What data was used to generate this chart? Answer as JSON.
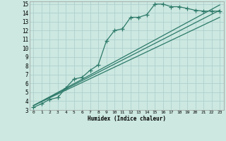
{
  "xlabel": "Humidex (Indice chaleur)",
  "bg_color": "#cce8e0",
  "grid_color": "#aacccc",
  "line_color": "#2d7a6a",
  "xlim": [
    -0.5,
    23.5
  ],
  "ylim": [
    3,
    15.3
  ],
  "xticks": [
    0,
    1,
    2,
    3,
    4,
    5,
    6,
    7,
    8,
    9,
    10,
    11,
    12,
    13,
    14,
    15,
    16,
    17,
    18,
    19,
    20,
    21,
    22,
    23
  ],
  "yticks": [
    3,
    4,
    5,
    6,
    7,
    8,
    9,
    10,
    11,
    12,
    13,
    14,
    15
  ],
  "series1_x": [
    0,
    1,
    2,
    3,
    4,
    5,
    6,
    7,
    8,
    9,
    10,
    11,
    12,
    13,
    14,
    15,
    16,
    17,
    18,
    19,
    20,
    21,
    22,
    23
  ],
  "series1_y": [
    3.3,
    3.7,
    4.2,
    4.4,
    5.5,
    6.5,
    6.7,
    7.5,
    8.1,
    10.8,
    12.0,
    12.2,
    13.5,
    13.5,
    13.8,
    15.0,
    15.0,
    14.7,
    14.7,
    14.5,
    14.3,
    14.2,
    14.2,
    14.2
  ],
  "series2_x": [
    0,
    23
  ],
  "series2_y": [
    3.5,
    14.3
  ],
  "series3_x": [
    0,
    23
  ],
  "series3_y": [
    3.5,
    13.5
  ],
  "series4_x": [
    0,
    23
  ],
  "series4_y": [
    3.5,
    14.9
  ]
}
